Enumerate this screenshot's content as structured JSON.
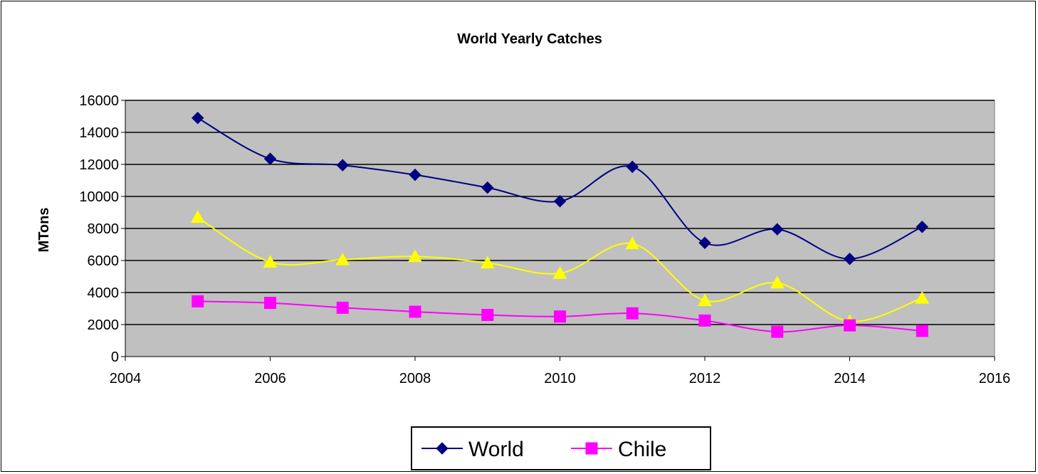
{
  "chart_data": {
    "type": "line",
    "title": "World Yearly Catches",
    "xlabel": "",
    "ylabel": "MTons",
    "xlim": [
      2004,
      2016
    ],
    "ylim": [
      0,
      16000
    ],
    "xticks": [
      "2004",
      "2006",
      "2008",
      "2010",
      "2012",
      "2014",
      "2016"
    ],
    "yticks": [
      "0",
      "2000",
      "4000",
      "6000",
      "8000",
      "10000",
      "12000",
      "14000",
      "16000"
    ],
    "grid": true,
    "legend_position": "bottom",
    "plot_background": "#c0c0c0",
    "x": [
      2005,
      2006,
      2007,
      2008,
      2009,
      2010,
      2011,
      2012,
      2013,
      2014,
      2015
    ],
    "series": [
      {
        "name": "World",
        "color": "#000080",
        "marker": "diamond",
        "values": [
          14900,
          12350,
          11950,
          11350,
          10550,
          9700,
          11850,
          7100,
          7950,
          6100,
          8100
        ]
      },
      {
        "color": "#ffff00",
        "marker": "triangle",
        "values": [
          8700,
          5900,
          6050,
          6250,
          5850,
          5200,
          7050,
          3500,
          4600,
          2200,
          3650
        ]
      },
      {
        "name": "Chile",
        "color": "#ff00ff",
        "marker": "square",
        "values": [
          3450,
          3350,
          3050,
          2800,
          2600,
          2500,
          2700,
          2250,
          1550,
          1950,
          1600
        ]
      }
    ]
  }
}
